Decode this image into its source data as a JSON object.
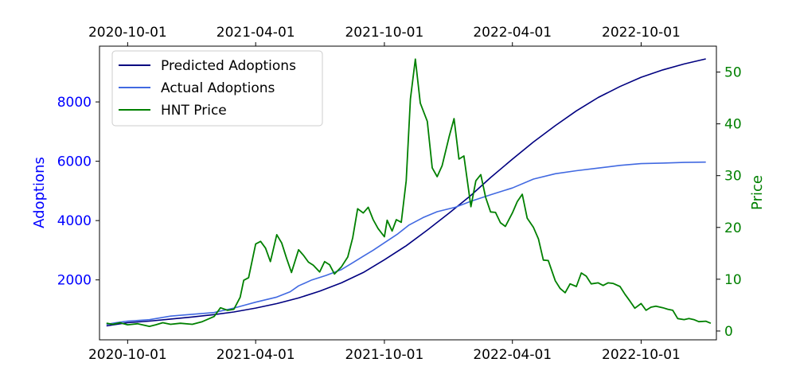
{
  "chart_data": {
    "type": "line",
    "title": "",
    "xlabel": "",
    "y_left_label": "Adoptions",
    "y_right_label": "Price",
    "x_range": [
      "2020-08-22",
      "2023-01-16"
    ],
    "x_ticks": [
      "2020-10-01",
      "2021-04-01",
      "2021-10-01",
      "2022-04-01",
      "2022-10-01"
    ],
    "x_ticks_top": [
      "2020-10-01",
      "2021-04-01",
      "2021-10-01",
      "2022-04-01",
      "2022-10-01"
    ],
    "y_left_range": [
      -20,
      9880
    ],
    "y_left_ticks": [
      2000,
      4000,
      6000,
      8000
    ],
    "y_right_range": [
      -1.7,
      55.0
    ],
    "y_right_ticks": [
      0,
      10,
      20,
      30,
      40,
      50
    ],
    "grid": false,
    "legend_position": "top-left",
    "colors": {
      "left_axis": "#0000ff",
      "right_axis": "#008000",
      "predicted": "#000080",
      "actual": "#4169e1",
      "price": "#008000"
    },
    "series": [
      {
        "name": "Predicted Adoptions",
        "axis": "left",
        "points": [
          [
            "2020-09-01",
            450
          ],
          [
            "2020-10-01",
            560
          ],
          [
            "2020-11-01",
            610
          ],
          [
            "2020-12-01",
            680
          ],
          [
            "2021-01-01",
            750
          ],
          [
            "2021-02-01",
            830
          ],
          [
            "2021-03-01",
            920
          ],
          [
            "2021-04-01",
            1050
          ],
          [
            "2021-05-01",
            1200
          ],
          [
            "2021-06-01",
            1390
          ],
          [
            "2021-07-01",
            1620
          ],
          [
            "2021-08-01",
            1900
          ],
          [
            "2021-09-01",
            2250
          ],
          [
            "2021-10-01",
            2680
          ],
          [
            "2021-11-01",
            3150
          ],
          [
            "2021-12-01",
            3680
          ],
          [
            "2022-01-01",
            4250
          ],
          [
            "2022-02-01",
            4850
          ],
          [
            "2022-03-01",
            5450
          ],
          [
            "2022-04-01",
            6070
          ],
          [
            "2022-05-01",
            6650
          ],
          [
            "2022-06-01",
            7200
          ],
          [
            "2022-07-01",
            7700
          ],
          [
            "2022-08-01",
            8150
          ],
          [
            "2022-09-01",
            8520
          ],
          [
            "2022-10-01",
            8830
          ],
          [
            "2022-11-01",
            9080
          ],
          [
            "2022-12-01",
            9280
          ],
          [
            "2023-01-01",
            9450
          ]
        ]
      },
      {
        "name": "Actual Adoptions",
        "axis": "left",
        "points": [
          [
            "2020-09-01",
            500
          ],
          [
            "2020-09-15",
            560
          ],
          [
            "2020-10-01",
            610
          ],
          [
            "2020-11-01",
            660
          ],
          [
            "2020-12-01",
            780
          ],
          [
            "2021-01-01",
            840
          ],
          [
            "2021-02-01",
            900
          ],
          [
            "2021-03-01",
            1050
          ],
          [
            "2021-04-01",
            1250
          ],
          [
            "2021-05-01",
            1420
          ],
          [
            "2021-05-20",
            1600
          ],
          [
            "2021-06-01",
            1800
          ],
          [
            "2021-06-20",
            2000
          ],
          [
            "2021-07-10",
            2150
          ],
          [
            "2021-08-01",
            2350
          ],
          [
            "2021-08-15",
            2550
          ],
          [
            "2021-09-01",
            2800
          ],
          [
            "2021-09-15",
            3000
          ],
          [
            "2021-10-01",
            3250
          ],
          [
            "2021-10-20",
            3550
          ],
          [
            "2021-11-05",
            3850
          ],
          [
            "2021-11-25",
            4100
          ],
          [
            "2021-12-15",
            4300
          ],
          [
            "2022-01-10",
            4450
          ],
          [
            "2022-02-01",
            4650
          ],
          [
            "2022-03-01",
            4870
          ],
          [
            "2022-04-01",
            5100
          ],
          [
            "2022-05-01",
            5400
          ],
          [
            "2022-06-01",
            5580
          ],
          [
            "2022-07-01",
            5680
          ],
          [
            "2022-08-01",
            5770
          ],
          [
            "2022-09-01",
            5860
          ],
          [
            "2022-10-01",
            5920
          ],
          [
            "2022-11-01",
            5940
          ],
          [
            "2022-12-01",
            5960
          ],
          [
            "2023-01-01",
            5970
          ]
        ]
      },
      {
        "name": "HNT Price",
        "axis": "right",
        "points": [
          [
            "2020-09-01",
            1.5
          ],
          [
            "2020-09-10",
            1.3
          ],
          [
            "2020-09-20",
            1.6
          ],
          [
            "2020-10-01",
            1.2
          ],
          [
            "2020-10-15",
            1.4
          ],
          [
            "2020-11-01",
            0.9
          ],
          [
            "2020-11-10",
            1.2
          ],
          [
            "2020-11-20",
            1.6
          ],
          [
            "2020-12-01",
            1.3
          ],
          [
            "2020-12-15",
            1.5
          ],
          [
            "2021-01-01",
            1.3
          ],
          [
            "2021-01-15",
            1.8
          ],
          [
            "2021-02-01",
            2.8
          ],
          [
            "2021-02-10",
            4.5
          ],
          [
            "2021-02-20",
            4.0
          ],
          [
            "2021-03-01",
            4.2
          ],
          [
            "2021-03-10",
            6.5
          ],
          [
            "2021-03-15",
            9.8
          ],
          [
            "2021-03-22",
            10.3
          ],
          [
            "2021-04-01",
            16.8
          ],
          [
            "2021-04-08",
            17.3
          ],
          [
            "2021-04-15",
            16.0
          ],
          [
            "2021-04-22",
            13.4
          ],
          [
            "2021-05-01",
            18.6
          ],
          [
            "2021-05-08",
            17.0
          ],
          [
            "2021-05-15",
            14.0
          ],
          [
            "2021-05-22",
            11.3
          ],
          [
            "2021-06-01",
            15.7
          ],
          [
            "2021-06-08",
            14.6
          ],
          [
            "2021-06-15",
            13.3
          ],
          [
            "2021-06-22",
            12.7
          ],
          [
            "2021-07-01",
            11.4
          ],
          [
            "2021-07-08",
            13.4
          ],
          [
            "2021-07-15",
            12.8
          ],
          [
            "2021-07-22",
            11.0
          ],
          [
            "2021-08-01",
            12.4
          ],
          [
            "2021-08-10",
            14.3
          ],
          [
            "2021-08-17",
            18.0
          ],
          [
            "2021-08-24",
            23.6
          ],
          [
            "2021-09-01",
            22.8
          ],
          [
            "2021-09-08",
            23.9
          ],
          [
            "2021-09-15",
            21.5
          ],
          [
            "2021-09-22",
            19.8
          ],
          [
            "2021-10-01",
            18.2
          ],
          [
            "2021-10-05",
            21.4
          ],
          [
            "2021-10-12",
            19.3
          ],
          [
            "2021-10-18",
            21.5
          ],
          [
            "2021-10-25",
            21.0
          ],
          [
            "2021-11-01",
            29.0
          ],
          [
            "2021-11-07",
            44.8
          ],
          [
            "2021-11-14",
            52.5
          ],
          [
            "2021-11-21",
            44.0
          ],
          [
            "2021-12-01",
            40.5
          ],
          [
            "2021-12-08",
            31.5
          ],
          [
            "2021-12-15",
            29.8
          ],
          [
            "2021-12-22",
            31.9
          ],
          [
            "2022-01-01",
            37.5
          ],
          [
            "2022-01-08",
            41.0
          ],
          [
            "2022-01-15",
            33.2
          ],
          [
            "2022-01-22",
            33.8
          ],
          [
            "2022-02-01",
            24.0
          ],
          [
            "2022-02-08",
            29.0
          ],
          [
            "2022-02-15",
            30.2
          ],
          [
            "2022-02-22",
            25.8
          ],
          [
            "2022-03-01",
            23.0
          ],
          [
            "2022-03-08",
            22.9
          ],
          [
            "2022-03-15",
            20.9
          ],
          [
            "2022-03-22",
            20.2
          ],
          [
            "2022-04-01",
            22.8
          ],
          [
            "2022-04-08",
            25.0
          ],
          [
            "2022-04-15",
            26.4
          ],
          [
            "2022-04-22",
            21.8
          ],
          [
            "2022-05-01",
            20.0
          ],
          [
            "2022-05-08",
            17.8
          ],
          [
            "2022-05-15",
            13.7
          ],
          [
            "2022-05-22",
            13.6
          ],
          [
            "2022-06-01",
            9.7
          ],
          [
            "2022-06-08",
            8.2
          ],
          [
            "2022-06-15",
            7.4
          ],
          [
            "2022-06-22",
            9.1
          ],
          [
            "2022-07-01",
            8.6
          ],
          [
            "2022-07-08",
            11.2
          ],
          [
            "2022-07-15",
            10.6
          ],
          [
            "2022-07-22",
            9.1
          ],
          [
            "2022-08-01",
            9.3
          ],
          [
            "2022-08-08",
            8.8
          ],
          [
            "2022-08-15",
            9.3
          ],
          [
            "2022-08-22",
            9.2
          ],
          [
            "2022-09-01",
            8.6
          ],
          [
            "2022-09-08",
            7.1
          ],
          [
            "2022-09-15",
            5.8
          ],
          [
            "2022-09-22",
            4.4
          ],
          [
            "2022-10-01",
            5.3
          ],
          [
            "2022-10-08",
            4.0
          ],
          [
            "2022-10-15",
            4.6
          ],
          [
            "2022-10-22",
            4.8
          ],
          [
            "2022-11-01",
            4.5
          ],
          [
            "2022-11-08",
            4.2
          ],
          [
            "2022-11-15",
            4.0
          ],
          [
            "2022-11-22",
            2.4
          ],
          [
            "2022-12-01",
            2.2
          ],
          [
            "2022-12-08",
            2.4
          ],
          [
            "2022-12-15",
            2.2
          ],
          [
            "2022-12-22",
            1.8
          ],
          [
            "2023-01-01",
            1.9
          ],
          [
            "2023-01-08",
            1.5
          ]
        ]
      }
    ]
  }
}
